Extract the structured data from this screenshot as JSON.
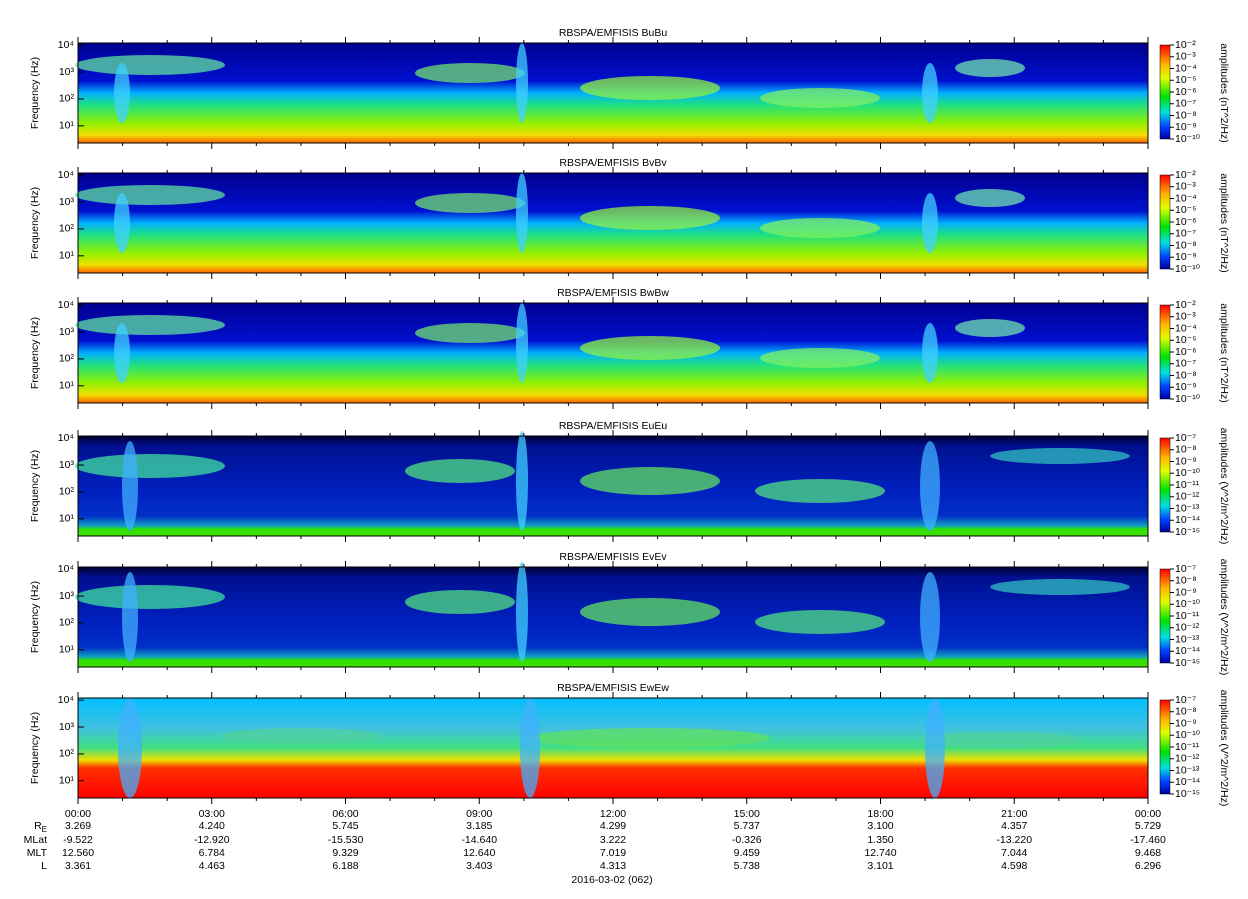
{
  "chart_data": [
    {
      "type": "spectrogram",
      "title": "RBSPA/EMFISIS  BuBu",
      "ylabel": "Frequency (Hz)",
      "log_y": true,
      "ylim": [
        2.3,
        12000
      ],
      "yticks": [
        {
          "value": 10,
          "label": "10¹"
        },
        {
          "value": 100,
          "label": "10²"
        },
        {
          "value": 1000,
          "label": "10³"
        },
        {
          "value": 10000,
          "label": "10⁴"
        }
      ],
      "colorbar": {
        "label": "amplitudes (nT^2/Hz)",
        "lim": [
          1e-10,
          0.01
        ],
        "ticks": [
          {
            "value": 0.01,
            "label": "10⁻²"
          },
          {
            "value": 0.001,
            "label": "10⁻³"
          },
          {
            "value": 0.0001,
            "label": "10⁻⁴"
          },
          {
            "value": 1e-05,
            "label": "10⁻⁵"
          },
          {
            "value": 1e-06,
            "label": "10⁻⁶"
          },
          {
            "value": 1e-07,
            "label": "10⁻⁷"
          },
          {
            "value": 1e-08,
            "label": "10⁻⁸"
          },
          {
            "value": 1e-09,
            "label": "10⁻⁹"
          },
          {
            "value": 1e-10,
            "label": "10⁻¹⁰"
          }
        ]
      }
    },
    {
      "type": "spectrogram",
      "title": "RBSPA/EMFISIS  BvBv",
      "ylabel": "Frequency (Hz)",
      "log_y": true,
      "ylim": [
        2.3,
        12000
      ],
      "yticks": [
        {
          "value": 10,
          "label": "10¹"
        },
        {
          "value": 100,
          "label": "10²"
        },
        {
          "value": 1000,
          "label": "10³"
        },
        {
          "value": 10000,
          "label": "10⁴"
        }
      ],
      "colorbar": {
        "label": "amplitudes (nT^2/Hz)",
        "lim": [
          1e-10,
          0.01
        ],
        "ticks": [
          {
            "value": 0.01,
            "label": "10⁻²"
          },
          {
            "value": 0.001,
            "label": "10⁻³"
          },
          {
            "value": 0.0001,
            "label": "10⁻⁴"
          },
          {
            "value": 1e-05,
            "label": "10⁻⁵"
          },
          {
            "value": 1e-06,
            "label": "10⁻⁶"
          },
          {
            "value": 1e-07,
            "label": "10⁻⁷"
          },
          {
            "value": 1e-08,
            "label": "10⁻⁸"
          },
          {
            "value": 1e-09,
            "label": "10⁻⁹"
          },
          {
            "value": 1e-10,
            "label": "10⁻¹⁰"
          }
        ]
      }
    },
    {
      "type": "spectrogram",
      "title": "RBSPA/EMFISIS  BwBw",
      "ylabel": "Frequency (Hz)",
      "log_y": true,
      "ylim": [
        2.3,
        12000
      ],
      "yticks": [
        {
          "value": 10,
          "label": "10¹"
        },
        {
          "value": 100,
          "label": "10²"
        },
        {
          "value": 1000,
          "label": "10³"
        },
        {
          "value": 10000,
          "label": "10⁴"
        }
      ],
      "colorbar": {
        "label": "amplitudes (nT^2/Hz)",
        "lim": [
          1e-10,
          0.01
        ],
        "ticks": [
          {
            "value": 0.01,
            "label": "10⁻²"
          },
          {
            "value": 0.001,
            "label": "10⁻³"
          },
          {
            "value": 0.0001,
            "label": "10⁻⁴"
          },
          {
            "value": 1e-05,
            "label": "10⁻⁵"
          },
          {
            "value": 1e-06,
            "label": "10⁻⁶"
          },
          {
            "value": 1e-07,
            "label": "10⁻⁷"
          },
          {
            "value": 1e-08,
            "label": "10⁻⁸"
          },
          {
            "value": 1e-09,
            "label": "10⁻⁹"
          },
          {
            "value": 1e-10,
            "label": "10⁻¹⁰"
          }
        ]
      }
    },
    {
      "type": "spectrogram",
      "title": "RBSPA/EMFISIS  EuEu",
      "ylabel": "Frequency (Hz)",
      "log_y": true,
      "ylim": [
        2.3,
        12000
      ],
      "yticks": [
        {
          "value": 10,
          "label": "10¹"
        },
        {
          "value": 100,
          "label": "10²"
        },
        {
          "value": 1000,
          "label": "10³"
        },
        {
          "value": 10000,
          "label": "10⁴"
        }
      ],
      "colorbar": {
        "label": "amplitudes (V^2/m^2/Hz)",
        "lim": [
          1e-15,
          1e-07
        ],
        "ticks": [
          {
            "value": 1e-07,
            "label": "10⁻⁷"
          },
          {
            "value": 1e-08,
            "label": "10⁻⁸"
          },
          {
            "value": 1e-09,
            "label": "10⁻⁹"
          },
          {
            "value": 1e-10,
            "label": "10⁻¹⁰"
          },
          {
            "value": 1e-11,
            "label": "10⁻¹¹"
          },
          {
            "value": 1e-12,
            "label": "10⁻¹²"
          },
          {
            "value": 1e-13,
            "label": "10⁻¹³"
          },
          {
            "value": 1e-14,
            "label": "10⁻¹⁴"
          },
          {
            "value": 1e-15,
            "label": "10⁻¹⁵"
          }
        ]
      }
    },
    {
      "type": "spectrogram",
      "title": "RBSPA/EMFISIS  EvEv",
      "ylabel": "Frequency (Hz)",
      "log_y": true,
      "ylim": [
        2.3,
        12000
      ],
      "yticks": [
        {
          "value": 10,
          "label": "10¹"
        },
        {
          "value": 100,
          "label": "10²"
        },
        {
          "value": 1000,
          "label": "10³"
        },
        {
          "value": 10000,
          "label": "10⁴"
        }
      ],
      "colorbar": {
        "label": "amplitudes (V^2/m^2/Hz)",
        "lim": [
          1e-15,
          1e-07
        ],
        "ticks": [
          {
            "value": 1e-07,
            "label": "10⁻⁷"
          },
          {
            "value": 1e-08,
            "label": "10⁻⁸"
          },
          {
            "value": 1e-09,
            "label": "10⁻⁹"
          },
          {
            "value": 1e-10,
            "label": "10⁻¹⁰"
          },
          {
            "value": 1e-11,
            "label": "10⁻¹¹"
          },
          {
            "value": 1e-12,
            "label": "10⁻¹²"
          },
          {
            "value": 1e-13,
            "label": "10⁻¹³"
          },
          {
            "value": 1e-14,
            "label": "10⁻¹⁴"
          },
          {
            "value": 1e-15,
            "label": "10⁻¹⁵"
          }
        ]
      }
    },
    {
      "type": "spectrogram",
      "title": "RBSPA/EMFISIS  EwEw",
      "ylabel": "Frequency (Hz)",
      "log_y": true,
      "ylim": [
        2.3,
        12000
      ],
      "yticks": [
        {
          "value": 10,
          "label": "10¹"
        },
        {
          "value": 100,
          "label": "10²"
        },
        {
          "value": 1000,
          "label": "10³"
        },
        {
          "value": 10000,
          "label": "10⁴"
        }
      ],
      "colorbar": {
        "label": "amplitudes (V^2/m^2/Hz)",
        "lim": [
          1e-15,
          1e-07
        ],
        "ticks": [
          {
            "value": 1e-07,
            "label": "10⁻⁷"
          },
          {
            "value": 1e-08,
            "label": "10⁻⁸"
          },
          {
            "value": 1e-09,
            "label": "10⁻⁹"
          },
          {
            "value": 1e-10,
            "label": "10⁻¹⁰"
          },
          {
            "value": 1e-11,
            "label": "10⁻¹¹"
          },
          {
            "value": 1e-12,
            "label": "10⁻¹²"
          },
          {
            "value": 1e-13,
            "label": "10⁻¹³"
          },
          {
            "value": 1e-14,
            "label": "10⁻¹⁴"
          },
          {
            "value": 1e-15,
            "label": "10⁻¹⁵"
          }
        ]
      },
      "xlim": [
        0,
        24
      ],
      "xticks": [
        {
          "value": 0,
          "label": "00:00"
        },
        {
          "value": 3,
          "label": "03:00"
        },
        {
          "value": 6,
          "label": "06:00"
        },
        {
          "value": 9,
          "label": "09:00"
        },
        {
          "value": 12,
          "label": "12:00"
        },
        {
          "value": 15,
          "label": "15:00"
        },
        {
          "value": 18,
          "label": "18:00"
        },
        {
          "value": 21,
          "label": "21:00"
        },
        {
          "value": 24,
          "label": "00:00"
        }
      ],
      "xminorticks": [
        1,
        2,
        4,
        5,
        7,
        8,
        10,
        11,
        13,
        14,
        16,
        17,
        19,
        20,
        22,
        23
      ]
    }
  ],
  "ephemeris": {
    "rows": [
      {
        "label": "R",
        "sub": "E",
        "values": [
          "3.269",
          "4.240",
          "5.745",
          "3.185",
          "4.299",
          "5.737",
          "3.100",
          "4.357",
          "5.729"
        ]
      },
      {
        "label": "MLat",
        "values": [
          "-9.522",
          "-12.920",
          "-15.530",
          "-14.640",
          "3.222",
          "-0.326",
          "1.350",
          "-13.220",
          "-17.460"
        ]
      },
      {
        "label": "MLT",
        "values": [
          "12.560",
          "6.784",
          "9.329",
          "12.640",
          "7.019",
          "9.459",
          "12.740",
          "7.044",
          "9.468"
        ]
      },
      {
        "label": "L",
        "values": [
          "3.361",
          "4.463",
          "6.188",
          "3.403",
          "4.313",
          "5.738",
          "3.101",
          "4.598",
          "6.296"
        ]
      }
    ],
    "date": "2016-03-02 (062)"
  }
}
